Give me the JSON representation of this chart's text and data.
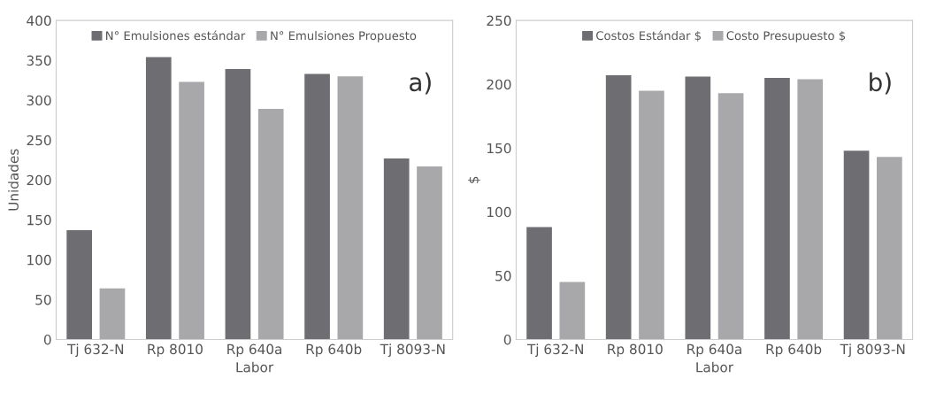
{
  "chart_data": [
    {
      "type": "bar",
      "categories": [
        "Tj 632-N",
        "Rp 8010",
        "Rp 640a",
        "Rp 640b",
        "Tj 8093-N"
      ],
      "xlabel": "Labor",
      "ylabel": "Unidades",
      "ylim": [
        0,
        400
      ],
      "yticks": [
        0,
        50,
        100,
        150,
        200,
        250,
        300,
        350,
        400
      ],
      "legend": "top",
      "annotations": [
        "a)"
      ],
      "series": [
        {
          "name": "N° Emulsiones estándar",
          "color": "#6e6e72",
          "values": [
            137,
            354,
            339,
            333,
            227
          ]
        },
        {
          "name": "N° Emulsiones Propuesto",
          "color": "#a8a8ab",
          "values": [
            64,
            323,
            289,
            330,
            217
          ]
        }
      ]
    },
    {
      "type": "bar",
      "categories": [
        "Tj 632-N",
        "Rp 8010",
        "Rp 640a",
        "Rp 640b",
        "Tj 8093-N"
      ],
      "xlabel": "Labor",
      "ylabel": "$",
      "ylim": [
        0,
        250
      ],
      "yticks": [
        0,
        50,
        100,
        150,
        200,
        250
      ],
      "legend": "top",
      "annotations": [
        "b)"
      ],
      "series": [
        {
          "name": "Costos Estándar $",
          "color": "#6e6e72",
          "values": [
            88,
            207,
            206,
            205,
            148
          ]
        },
        {
          "name": "Costo Presupuesto $",
          "color": "#a8a8ab",
          "values": [
            45,
            195,
            193,
            204,
            143
          ]
        }
      ]
    }
  ]
}
